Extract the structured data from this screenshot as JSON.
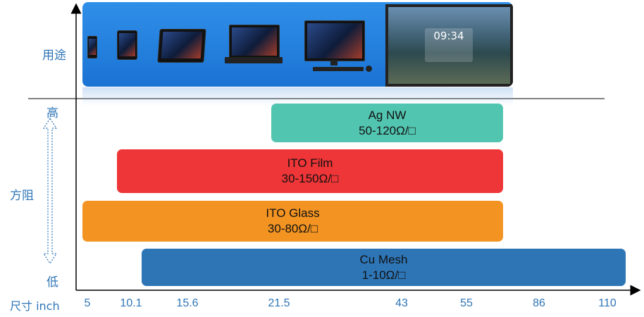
{
  "labels": {
    "usage": "用途",
    "resistance": "方阻",
    "high": "高",
    "low": "低",
    "size": "尺寸 inch"
  },
  "chart_data": {
    "type": "bar",
    "orientation": "horizontal-range",
    "x_ticks": [
      "5",
      "10.1",
      "15.6",
      "21.5",
      "43",
      "55",
      "86",
      "110"
    ],
    "ylabel": "方阻",
    "xlabel": "尺寸 inch",
    "series": [
      {
        "name": "Ag NW",
        "range_text": "50-120Ω/□",
        "from": "21.5",
        "to_between": [
          "55",
          "86"
        ],
        "color": "#52c5b0"
      },
      {
        "name": "ITO Film",
        "range_text": "30-150Ω/□",
        "from_between": [
          "5",
          "10.1"
        ],
        "to_between": [
          "55",
          "86"
        ],
        "color": "#ee3537"
      },
      {
        "name": "ITO Glass",
        "range_text": "30-80Ω/□",
        "from": "5",
        "to_between": [
          "55",
          "86"
        ],
        "color": "#f39422"
      },
      {
        "name": "Cu Mesh",
        "range_text": "1-10Ω/□",
        "from_between": [
          "10.1",
          "15.6"
        ],
        "to": "110",
        "color": "#2e75b6"
      }
    ],
    "usage_devices": [
      "phone",
      "tablet",
      "2-in-1 laptop",
      "laptop",
      "desktop",
      "large display"
    ],
    "large_display_clock": "09:34"
  }
}
